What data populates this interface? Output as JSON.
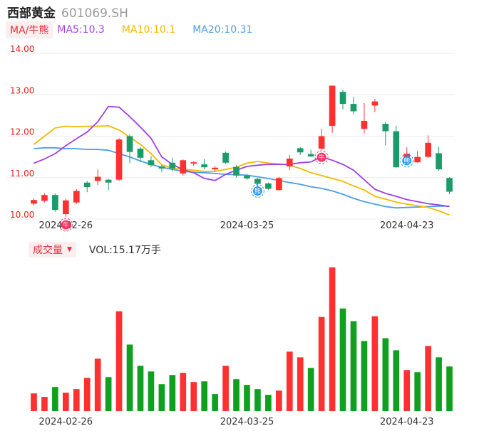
{
  "header": {
    "name": "西部黄金",
    "code": "601069.SH"
  },
  "ma_legend": {
    "tag": "MA/牛熊",
    "items": [
      {
        "label": "MA5:10.3",
        "color": "#a040e8"
      },
      {
        "label": "MA10:10.1",
        "color": "#f5b800"
      },
      {
        "label": "MA20:10.31",
        "color": "#4a9ee8"
      }
    ]
  },
  "volume_legend": {
    "tag": "成交量",
    "caret": "▼",
    "text": "VOL:15.17万手"
  },
  "colors": {
    "up": "#ff3030",
    "down": "#1a9c6a",
    "vol_up": "#ff3030",
    "vol_down": "#10a020",
    "grid": "#ececec",
    "axis_text": "#e02020",
    "date_text": "#333333"
  },
  "chart_data": {
    "type": "candlestick",
    "price_axis": {
      "ylim": [
        10.0,
        14.0
      ],
      "ticks": [
        "10.00",
        "11.00",
        "12.00",
        "13.00",
        "14.00"
      ]
    },
    "date_ticks": [
      {
        "label": "2024-02-26",
        "index": 3
      },
      {
        "label": "2024-03-25",
        "index": 20
      },
      {
        "label": "2024-04-23",
        "index": 35
      }
    ],
    "candles": [
      [
        10.37,
        10.46,
        10.33,
        10.5
      ],
      [
        10.44,
        10.58,
        10.4,
        10.62
      ],
      [
        10.58,
        10.22,
        10.18,
        10.62
      ],
      [
        10.12,
        10.45,
        10.05,
        10.5
      ],
      [
        10.4,
        10.68,
        10.36,
        10.72
      ],
      [
        10.88,
        10.77,
        10.65,
        10.92
      ],
      [
        10.92,
        11.02,
        10.82,
        11.2
      ],
      [
        10.95,
        10.88,
        10.7,
        10.97
      ],
      [
        10.95,
        11.92,
        10.92,
        11.95
      ],
      [
        12.0,
        11.62,
        11.35,
        12.05
      ],
      [
        11.7,
        11.48,
        11.38,
        11.74
      ],
      [
        11.42,
        11.3,
        11.25,
        11.52
      ],
      [
        11.27,
        11.22,
        11.14,
        11.3
      ],
      [
        11.36,
        11.22,
        11.15,
        11.48
      ],
      [
        11.1,
        11.42,
        11.05,
        11.44
      ],
      [
        11.34,
        11.37,
        11.28,
        11.4
      ],
      [
        11.32,
        11.25,
        11.2,
        11.45
      ],
      [
        11.2,
        11.24,
        11.15,
        11.28
      ],
      [
        11.6,
        11.36,
        11.33,
        11.63
      ],
      [
        11.26,
        11.05,
        11.0,
        11.3
      ],
      [
        11.05,
        10.98,
        10.95,
        11.08
      ],
      [
        10.97,
        10.85,
        10.7,
        10.99
      ],
      [
        10.86,
        10.73,
        10.7,
        10.88
      ],
      [
        10.7,
        10.99,
        10.68,
        11.02
      ],
      [
        11.27,
        11.46,
        11.18,
        11.55
      ],
      [
        11.71,
        11.61,
        11.55,
        11.74
      ],
      [
        11.57,
        11.51,
        11.5,
        11.67
      ],
      [
        11.7,
        12.0,
        11.68,
        12.18
      ],
      [
        12.25,
        13.22,
        12.08,
        13.22
      ],
      [
        13.07,
        12.78,
        12.65,
        13.12
      ],
      [
        12.78,
        12.6,
        12.52,
        12.95
      ],
      [
        12.18,
        12.37,
        12.07,
        12.8
      ],
      [
        12.74,
        12.84,
        12.58,
        12.9
      ],
      [
        12.3,
        12.12,
        11.78,
        12.35
      ],
      [
        12.12,
        11.25,
        11.24,
        12.25
      ],
      [
        11.38,
        11.58,
        11.3,
        11.73
      ],
      [
        11.37,
        11.5,
        11.36,
        11.64
      ],
      [
        11.5,
        11.84,
        11.48,
        12.02
      ],
      [
        11.59,
        11.2,
        11.17,
        11.74
      ],
      [
        10.99,
        10.66,
        10.6,
        11.01
      ]
    ],
    "volume": [
      {
        "v": 25,
        "up": true
      },
      {
        "v": 20,
        "up": true
      },
      {
        "v": 34,
        "up": false
      },
      {
        "v": 26,
        "up": true
      },
      {
        "v": 31,
        "up": true
      },
      {
        "v": 47,
        "up": true
      },
      {
        "v": 74,
        "up": true
      },
      {
        "v": 48,
        "up": false
      },
      {
        "v": 141,
        "up": true
      },
      {
        "v": 94,
        "up": false
      },
      {
        "v": 64,
        "up": false
      },
      {
        "v": 56,
        "up": false
      },
      {
        "v": 38,
        "up": false
      },
      {
        "v": 51,
        "up": false
      },
      {
        "v": 54,
        "up": true
      },
      {
        "v": 41,
        "up": true
      },
      {
        "v": 42,
        "up": false
      },
      {
        "v": 24,
        "up": false
      },
      {
        "v": 64,
        "up": true
      },
      {
        "v": 45,
        "up": false
      },
      {
        "v": 37,
        "up": false
      },
      {
        "v": 31,
        "up": false
      },
      {
        "v": 23,
        "up": false
      },
      {
        "v": 29,
        "up": true
      },
      {
        "v": 84,
        "up": true
      },
      {
        "v": 76,
        "up": true
      },
      {
        "v": 61,
        "up": false
      },
      {
        "v": 133,
        "up": true
      },
      {
        "v": 203,
        "up": true
      },
      {
        "v": 145,
        "up": false
      },
      {
        "v": 127,
        "up": false
      },
      {
        "v": 99,
        "up": false
      },
      {
        "v": 134,
        "up": true
      },
      {
        "v": 103,
        "up": false
      },
      {
        "v": 86,
        "up": false
      },
      {
        "v": 58,
        "up": true
      },
      {
        "v": 55,
        "up": false
      },
      {
        "v": 92,
        "up": true
      },
      {
        "v": 76,
        "up": false
      },
      {
        "v": 63,
        "up": false
      }
    ],
    "ma5": [
      [
        0,
        11.35
      ],
      [
        1,
        11.45
      ],
      [
        2,
        11.58
      ],
      [
        3,
        11.77
      ],
      [
        4,
        11.94
      ],
      [
        5,
        12.1
      ],
      [
        6,
        12.35
      ],
      [
        7,
        12.72
      ],
      [
        8,
        12.7
      ],
      [
        9,
        12.47
      ],
      [
        10,
        12.22
      ],
      [
        11,
        11.95
      ],
      [
        12,
        11.5
      ],
      [
        13,
        11.32
      ],
      [
        14,
        11.19
      ],
      [
        15,
        11.12
      ],
      [
        16,
        10.98
      ],
      [
        17,
        10.93
      ],
      [
        18,
        11.08
      ],
      [
        19,
        11.18
      ],
      [
        20,
        11.27
      ],
      [
        21,
        11.3
      ],
      [
        22,
        11.32
      ],
      [
        23,
        11.32
      ],
      [
        24,
        11.32
      ],
      [
        25,
        11.36
      ],
      [
        26,
        11.38
      ],
      [
        27,
        11.5
      ],
      [
        28,
        11.42
      ],
      [
        29,
        11.32
      ],
      [
        30,
        11.18
      ],
      [
        31,
        10.95
      ],
      [
        32,
        10.72
      ],
      [
        33,
        10.62
      ],
      [
        34,
        10.55
      ],
      [
        35,
        10.47
      ],
      [
        36,
        10.42
      ],
      [
        37,
        10.37
      ],
      [
        38,
        10.34
      ],
      [
        39,
        10.3
      ]
    ],
    "ma10": [
      [
        0,
        11.8
      ],
      [
        1,
        12.0
      ],
      [
        2,
        12.2
      ],
      [
        3,
        12.24
      ],
      [
        4,
        12.23
      ],
      [
        5,
        12.24
      ],
      [
        6,
        12.24
      ],
      [
        7,
        12.25
      ],
      [
        8,
        12.15
      ],
      [
        9,
        11.98
      ],
      [
        10,
        11.8
      ],
      [
        11,
        11.58
      ],
      [
        12,
        11.31
      ],
      [
        13,
        11.22
      ],
      [
        14,
        11.2
      ],
      [
        15,
        11.18
      ],
      [
        16,
        11.15
      ],
      [
        17,
        11.15
      ],
      [
        18,
        11.2
      ],
      [
        19,
        11.25
      ],
      [
        20,
        11.35
      ],
      [
        21,
        11.39
      ],
      [
        22,
        11.35
      ],
      [
        23,
        11.33
      ],
      [
        24,
        11.3
      ],
      [
        25,
        11.22
      ],
      [
        26,
        11.12
      ],
      [
        27,
        11.05
      ],
      [
        28,
        10.98
      ],
      [
        29,
        10.91
      ],
      [
        30,
        10.8
      ],
      [
        31,
        10.7
      ],
      [
        32,
        10.55
      ],
      [
        33,
        10.48
      ],
      [
        34,
        10.41
      ],
      [
        35,
        10.36
      ],
      [
        36,
        10.32
      ],
      [
        37,
        10.28
      ],
      [
        38,
        10.2
      ],
      [
        39,
        10.1
      ]
    ],
    "ma20": [
      [
        0,
        11.7
      ],
      [
        1,
        11.72
      ],
      [
        2,
        11.72
      ],
      [
        3,
        11.7
      ],
      [
        4,
        11.7
      ],
      [
        5,
        11.68
      ],
      [
        6,
        11.68
      ],
      [
        7,
        11.66
      ],
      [
        8,
        11.58
      ],
      [
        9,
        11.5
      ],
      [
        10,
        11.4
      ],
      [
        11,
        11.32
      ],
      [
        12,
        11.25
      ],
      [
        13,
        11.2
      ],
      [
        14,
        11.15
      ],
      [
        15,
        11.13
      ],
      [
        16,
        11.12
      ],
      [
        17,
        11.1
      ],
      [
        18,
        11.08
      ],
      [
        19,
        11.07
      ],
      [
        20,
        11.06
      ],
      [
        21,
        11.02
      ],
      [
        22,
        10.98
      ],
      [
        23,
        10.93
      ],
      [
        24,
        10.88
      ],
      [
        25,
        10.84
      ],
      [
        26,
        10.78
      ],
      [
        27,
        10.74
      ],
      [
        28,
        10.68
      ],
      [
        29,
        10.6
      ],
      [
        30,
        10.5
      ],
      [
        31,
        10.42
      ],
      [
        32,
        10.36
      ],
      [
        33,
        10.3
      ],
      [
        34,
        10.27
      ],
      [
        35,
        10.28
      ],
      [
        36,
        10.29
      ],
      [
        37,
        10.3
      ],
      [
        38,
        10.31
      ],
      [
        39,
        10.31
      ]
    ],
    "markers": [
      {
        "index": 3,
        "kind": "bull",
        "text": "牛",
        "color": "#ff3060"
      },
      {
        "index": 21,
        "kind": "bear",
        "text": "熊",
        "color": "#2a9cf2"
      },
      {
        "index": 27,
        "kind": "bull",
        "text": "牛",
        "color": "#ff3060"
      },
      {
        "index": 35,
        "kind": "bear",
        "text": "熊",
        "color": "#2a9cf2"
      }
    ]
  }
}
